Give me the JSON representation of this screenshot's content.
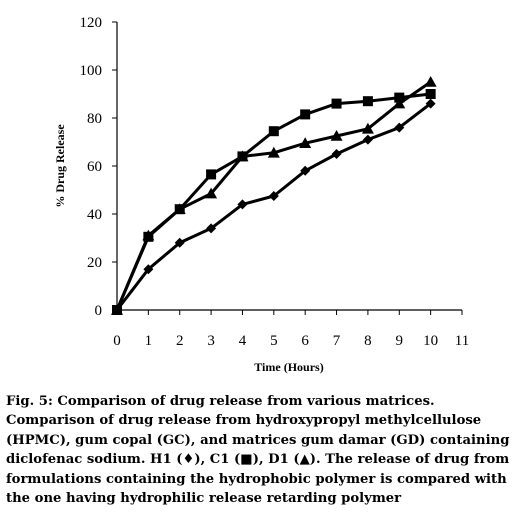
{
  "chart_data": {
    "type": "line",
    "xlabel": "Time (Hours)",
    "ylabel": "% Drug Release",
    "xlim": [
      0,
      11
    ],
    "ylim": [
      0,
      120
    ],
    "x_ticks": [
      "0",
      "1",
      "2",
      "3",
      "4",
      "5",
      "6",
      "7",
      "8",
      "9",
      "10",
      "11"
    ],
    "y_ticks": [
      "0",
      "20",
      "40",
      "60",
      "80",
      "100",
      "120"
    ],
    "grid": false,
    "legend": "none",
    "x": [
      0,
      1,
      2,
      3,
      4,
      5,
      6,
      7,
      8,
      9,
      10
    ],
    "series": [
      {
        "name": "H1",
        "marker": "diamond",
        "values": [
          0,
          17,
          28,
          34,
          44,
          47.5,
          58,
          65,
          71,
          76,
          86
        ]
      },
      {
        "name": "C1",
        "marker": "square",
        "values": [
          0,
          30.5,
          42,
          56.5,
          64,
          74.5,
          81.5,
          86,
          87,
          88.5,
          90
        ]
      },
      {
        "name": "D1",
        "marker": "triangle",
        "values": [
          0,
          31,
          42,
          48.5,
          64,
          65.5,
          69.5,
          72.5,
          75.5,
          86,
          95
        ]
      }
    ],
    "colors": {
      "line": "#000000",
      "marker": "#000000",
      "axis": "#000000"
    }
  },
  "caption": {
    "lines": [
      "Fig. 5: Comparison of drug release from various matrices.",
      "Comparison of drug release from hydroxypropyl methylcellulose",
      "(HPMC), gum copal (GC), and matrices gum damar (GD) containing",
      "diclofenac sodium. H1 (♦), C1 (■), D1 (▲). The release of drug from",
      "formulations containing the hydrophobic polymer is compared with",
      "the one having hydrophilic release retarding polymer"
    ]
  }
}
